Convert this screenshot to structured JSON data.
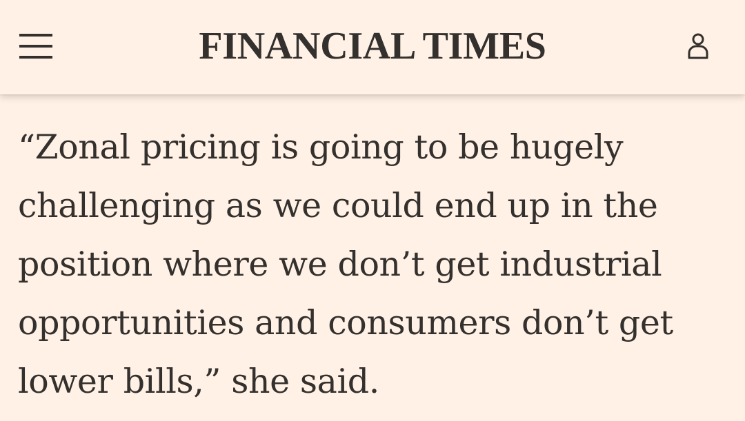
{
  "header": {
    "brand_title": "FINANCIAL TIMES",
    "menu_icon": "hamburger-menu-icon",
    "account_icon": "user-account-icon"
  },
  "article": {
    "quote_text": "“Zonal pricing is going to be hugely challenging as we could end up in the position where we don’t get industrial opportunities and consumers don’t get lower bills,” she said."
  },
  "colors": {
    "background": "#fff1e5",
    "text": "#33302e"
  }
}
